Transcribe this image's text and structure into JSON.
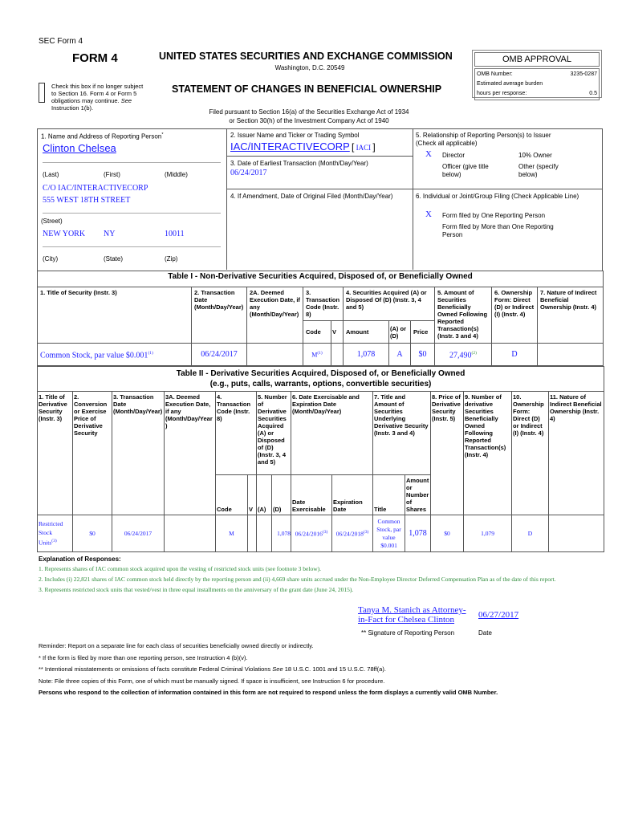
{
  "header": {
    "sec_form": "SEC Form 4",
    "form": "FORM 4",
    "commission": "UNITED STATES SECURITIES AND EXCHANGE COMMISSION",
    "city": "Washington, D.C. 20549",
    "statement": "STATEMENT OF CHANGES IN BENEFICIAL OWNERSHIP",
    "checkbox_label": "Check this box if no longer subject to Section 16. Form 4 or Form 5 obligations may continue.",
    "see": "See",
    "instruction": "Instruction 1(b).",
    "filed1": "Filed pursuant to Section 16(a) of the Securities Exchange Act of 1934",
    "filed2": "or Section 30(h) of the Investment Company Act of 1940"
  },
  "omb": {
    "title": "OMB APPROVAL",
    "number_label": "OMB Number:",
    "number": "3235-0287",
    "burden": "Estimated average burden",
    "hours_label": "hours per response:",
    "hours": "0.5"
  },
  "box1": {
    "label": "1. Name and Address of Reporting Person",
    "star": "*",
    "name": "Clinton Chelsea",
    "last": "(Last)",
    "first": "(First)",
    "middle": "(Middle)",
    "street1": "C/O IAC/INTERACTIVECORP",
    "street2": "555 WEST 18TH STREET",
    "street_label": "(Street)",
    "city": "NEW YORK",
    "state": "NY",
    "zip": "10011",
    "city_label": "(City)",
    "state_label": "(State)",
    "zip_label": "(Zip)"
  },
  "box2": {
    "label": "2. Issuer Name and Ticker or Trading Symbol",
    "issuer": "IAC/INTERACTIVECORP",
    "ticker": "IACI"
  },
  "box3": {
    "label": "3. Date of Earliest Transaction (Month/Day/Year)",
    "date": "06/24/2017"
  },
  "box4": {
    "label": "4. If Amendment, Date of Original Filed (Month/Day/Year)"
  },
  "box5": {
    "label": "5. Relationship of Reporting Person(s) to Issuer",
    "sub": "(Check all applicable)",
    "mark": "X",
    "director": "Director",
    "owner": "10% Owner",
    "officer": "Officer (give title below)",
    "other": "Other (specify below)"
  },
  "box6": {
    "label": "6. Individual or Joint/Group Filing (Check Applicable Line)",
    "mark": "X",
    "one": "Form filed by One Reporting Person",
    "more": "Form filed by More than One Reporting Person"
  },
  "table1": {
    "title": "Table I - Non-Derivative Securities Acquired, Disposed of, or Beneficially Owned",
    "headers": [
      "1. Title of Security (Instr. 3)",
      "2. Transaction Date (Month/Day/Year)",
      "2A. Deemed Execution Date, if any (Month/Day/Year)",
      "3. Transaction Code (Instr. 8)",
      "4. Securities Acquired (A) or Disposed Of (D) (Instr. 3, 4 and 5)",
      "5. Amount of Securities Beneficially Owned Following Reported Transaction(s) (Instr. 3 and 4)",
      "6. Ownership Form: Direct (D) or Indirect (I) (Instr. 4)",
      "7. Nature of Indirect Beneficial Ownership (Instr. 4)"
    ],
    "sub": [
      "Code",
      "V",
      "Amount",
      "(A) or (D)",
      "Price"
    ],
    "row": {
      "title": "Common Stock, par value $0.001",
      "title_fn": "(1)",
      "date": "06/24/2017",
      "code": "M",
      "code_fn": "(1)",
      "amount": "1,078",
      "ad": "A",
      "price": "$0",
      "owned": "27,490",
      "owned_fn": "(2)",
      "form": "D"
    }
  },
  "table2": {
    "title": "Table II - Derivative Securities Acquired, Disposed of, or Beneficially Owned",
    "subtitle": "(e.g., puts, calls, warrants, options, convertible securities)",
    "headers": [
      "1. Title of Derivative Security (Instr. 3)",
      "2. Conversion or Exercise Price of Derivative Security",
      "3. Transaction Date (Month/Day/Year)",
      "3A. Deemed Execution Date, if any (Month/Day/Year)",
      "4. Transaction Code (Instr. 8)",
      "5. Number of Derivative Securities Acquired (A) or Disposed of (D) (Instr. 3, 4 and 5)",
      "6. Date Exercisable and Expiration Date (Month/Day/Year)",
      "7. Title and Amount of Securities Underlying Derivative Security (Instr. 3 and 4)",
      "8. Price of Derivative Security (Instr. 5)",
      "9. Number of derivative Securities Beneficially Owned Following Reported Transaction(s) (Instr. 4)",
      "10. Ownership Form: Direct (D) or Indirect (I) (Instr. 4)",
      "11. Nature of Indirect Beneficial Ownership (Instr. 4)"
    ],
    "sub": [
      "Code",
      "V",
      "(A)",
      "(D)",
      "Date Exercisable",
      "Expiration Date",
      "Title",
      "Amount or Number of Shares"
    ],
    "row": {
      "title": "Restricted Stock Units",
      "title_fn": "(3)",
      "price": "$0",
      "date": "06/24/2017",
      "code": "M",
      "d": "1,078",
      "exercisable": "06/24/2016",
      "ex_fn": "(3)",
      "expiration": "06/24/2018",
      "exp_fn": "(3)",
      "und_title": "Common Stock, par value $0.001",
      "und_amount": "1,078",
      "deriv_price": "$0",
      "owned": "1,079",
      "form": "D"
    }
  },
  "explanations": {
    "title": "Explanation of Responses:",
    "items": [
      "1. Represents shares of IAC common stock acquired upon the vesting of restricted stock units (see footnote 3 below).",
      "2. Includes (i) 22,821 shares of IAC common stock held directly by the reporting person and (ii) 4,669 share units accrued under the Non-Employee Director Deferred Compensation Plan as of the date of this report.",
      "3. Represents restricted stock units that vested/vest in three equal installments on the anniversary of the grant date (June 24, 2015)."
    ]
  },
  "signature": {
    "name": "Tanya M. Stanich as Attorney-in-Fact for Chelsea Clinton",
    "date": "06/27/2017",
    "sig_label": "** Signature of Reporting Person",
    "date_label": "Date"
  },
  "footer": {
    "reminder": "Reminder: Report on a separate line for each class of securities beneficially owned directly or indirectly.",
    "star": "* If the form is filed by more than one reporting person, see Instruction 4 (b)(v).",
    "star2a": "** Intentional misstatements or omissions of facts constitute Federal Criminal Violations",
    "see": "See",
    "star2b": "18 U.S.C. 1001 and 15 U.S.C. 78ff(a).",
    "note": "Note: File three copies of this Form, one of which must be manually signed. If space is insufficient, see Instruction 6 for procedure.",
    "persons": "Persons who respond to the collection of information contained in this form are not required to respond unless the form displays a currently valid OMB Number."
  }
}
